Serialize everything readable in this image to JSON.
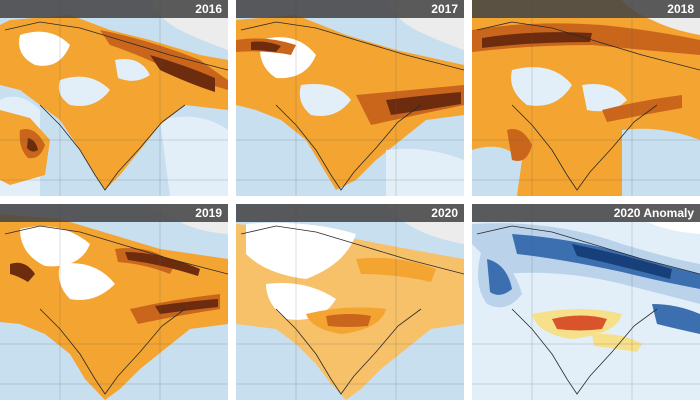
{
  "panels": [
    {
      "label": "2016",
      "kind": "nox"
    },
    {
      "label": "2017",
      "kind": "nox"
    },
    {
      "label": "2018",
      "kind": "nox"
    },
    {
      "label": "2019",
      "kind": "nox"
    },
    {
      "label": "2020",
      "kind": "nox"
    },
    {
      "label": "2020 Anomaly",
      "kind": "anomaly"
    }
  ],
  "colors": {
    "background_blue": "#c8dff0",
    "light_blue": "#e3eff8",
    "white": "#ffffff",
    "orange": "#f3a431",
    "light_orange": "#f7c169",
    "dark_orange": "#c9661c",
    "brown": "#6e2c0e",
    "anomaly_blue": "#3c6fb0",
    "anomaly_deep_blue": "#173f7a",
    "anomaly_light_blue": "#bad3ea",
    "anomaly_yellow": "#f6e08a",
    "anomaly_red": "#d9542a",
    "border_line": "#2a2a2a",
    "label_bar": "#464646"
  }
}
